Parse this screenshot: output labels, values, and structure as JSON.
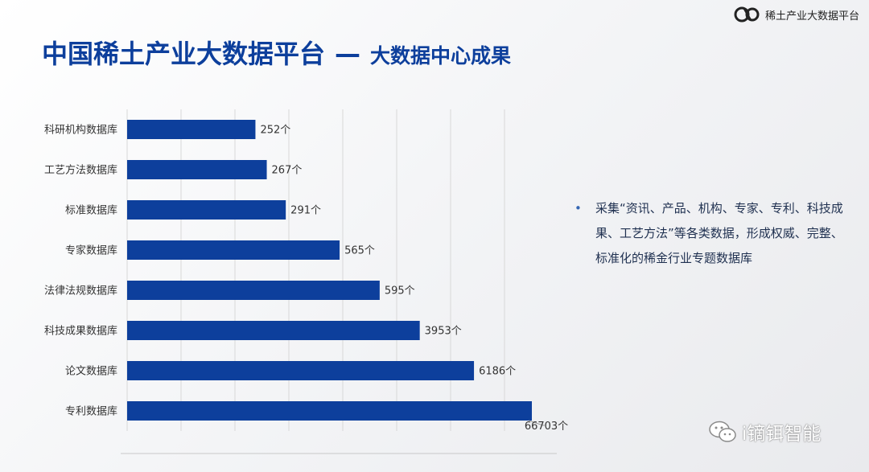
{
  "header": {
    "logo_text": "稀土产业大数据平台",
    "title": "中国稀土产业大数据平台",
    "separator": "—",
    "subtitle": "大数据中心成果"
  },
  "note": {
    "text": "采集“资讯、产品、机构、专家、专利、科技成果、工艺方法”等各类数据，形成权威、完整、标准化的稀金行业专题数据库"
  },
  "watermark": {
    "text": "i镝铒智能"
  },
  "colors": {
    "bar": "#0d3f9c",
    "title": "#0d3f9c"
  },
  "chart_data": {
    "type": "bar",
    "orientation": "horizontal",
    "categories": [
      "科研机构数据库",
      "工艺方法数据库",
      "标准数据库",
      "专家数据库",
      "法律法规数据库",
      "科技成果数据库",
      "论文数据库",
      "专利数据库"
    ],
    "values": [
      252,
      267,
      291,
      565,
      595,
      3953,
      6186,
      66703
    ],
    "value_labels": [
      "252个",
      "267个",
      "291个",
      "565个",
      "595个",
      "3953个",
      "6186个",
      "66703个"
    ],
    "relative_bar_lengths": [
      0.317,
      0.345,
      0.392,
      0.525,
      0.624,
      0.723,
      0.857,
      1.0
    ],
    "axis_scale": "non-linear (broken)",
    "grid": true,
    "legend": "none"
  }
}
